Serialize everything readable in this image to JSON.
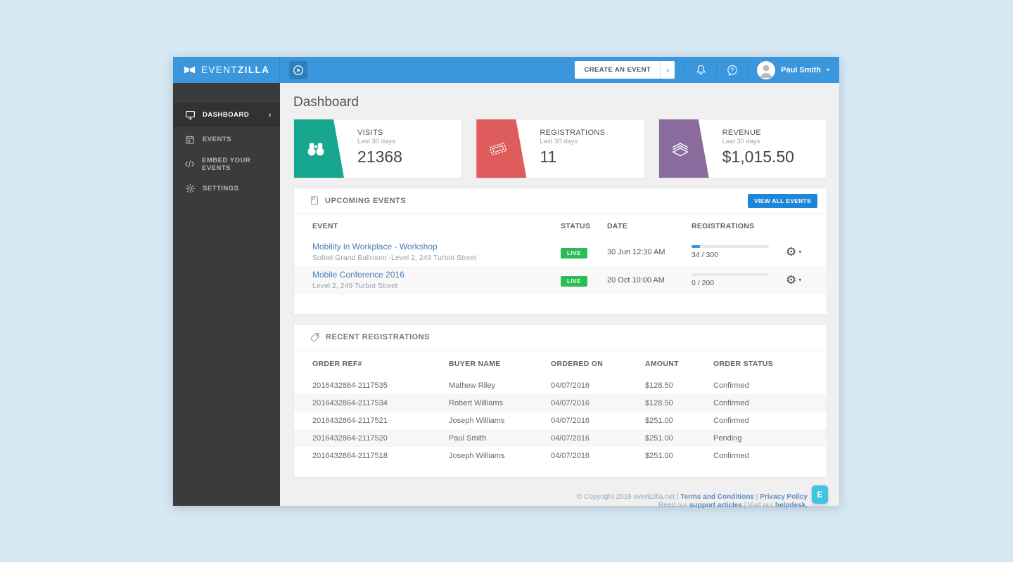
{
  "header": {
    "logo_event": "EVENT",
    "logo_zilla": "ZILLA",
    "create_event": "CREATE AN EVENT",
    "create_chevron": "›",
    "user_name": "Paul Smith"
  },
  "sidebar": {
    "items": [
      {
        "label": "DASHBOARD"
      },
      {
        "label": "EVENTS"
      },
      {
        "label": "EMBED YOUR EVENTS"
      },
      {
        "label": "SETTINGS"
      }
    ]
  },
  "page_title": "Dashboard",
  "stats": [
    {
      "label": "VISITS",
      "sublabel": "Last 30 days",
      "value": "21368",
      "color": "#17a78e",
      "icon": "binoculars-icon"
    },
    {
      "label": "REGISTRATIONS",
      "sublabel": "Last 30 days",
      "value": "11",
      "color": "#df5c5c",
      "icon": "tickets-icon"
    },
    {
      "label": "REVENUE",
      "sublabel": "Last 30 days",
      "value": "$1,015.50",
      "color": "#8a6b9d",
      "icon": "money-icon"
    }
  ],
  "events": {
    "section_title": "UPCOMING EVENTS",
    "view_all": "VIEW ALL EVENTS",
    "columns": {
      "event": "EVENT",
      "status": "STATUS",
      "date": "DATE",
      "registrations": "REGISTRATIONS"
    },
    "rows": [
      {
        "title": "Mobility in Workplace - Workshop",
        "venue": "Sofitel Grand Ballroom -Level 2, 249 Turbot Street",
        "status": "LIVE",
        "date": "30 Jun 12:30 AM",
        "count": "34 / 300",
        "progress": 11
      },
      {
        "title": "Mobile Conference 2016",
        "venue": "Level 2, 249 Turbot Street",
        "status": "LIVE",
        "date": "20 Oct 10:00 AM",
        "count": "0 / 200",
        "progress": 0
      }
    ]
  },
  "registrations": {
    "section_title": "RECENT REGISTRATIONS",
    "columns": {
      "ref": "ORDER REF#",
      "buyer": "BUYER NAME",
      "ordered": "ORDERED ON",
      "amount": "AMOUNT",
      "status": "ORDER STATUS"
    },
    "rows": [
      {
        "ref": "2016432864-2117535",
        "buyer": "Mathew Riley",
        "ordered": "04/07/2016",
        "amount": "$128.50",
        "status": "Confirmed"
      },
      {
        "ref": "2016432864-2117534",
        "buyer": "Robert Williams",
        "ordered": "04/07/2016",
        "amount": "$128.50",
        "status": "Confirmed"
      },
      {
        "ref": "2016432864-2117521",
        "buyer": "Joseph Williams",
        "ordered": "04/07/2016",
        "amount": "$251.00",
        "status": "Confirmed"
      },
      {
        "ref": "2016432864-2117520",
        "buyer": "Paul Smith",
        "ordered": "04/07/2016",
        "amount": "$251.00",
        "status": "Pending"
      },
      {
        "ref": "2016432864-2117518",
        "buyer": "Joseph Williams",
        "ordered": "04/07/2016",
        "amount": "$251.00",
        "status": "Confirmed"
      }
    ]
  },
  "footer": {
    "copyright": "© Copyright 2016 eventzilla.net",
    "sep": "|",
    "terms": "Terms and Conditions",
    "privacy": "Privacy Policy",
    "read_our": "Read our",
    "support": "support articles",
    "visit_our": "Visit our",
    "helpdesk": "helpdesk.",
    "chat_letter": "E"
  },
  "colors": {
    "header_blue": "#3b97dd",
    "sidebar_dark": "#3b3b3b",
    "live_green": "#2bbd55",
    "button_blue": "#1d86d8",
    "link_blue": "#4a7eb5",
    "progress_blue": "#3b97dd",
    "chat_cyan": "#41c3e3"
  }
}
